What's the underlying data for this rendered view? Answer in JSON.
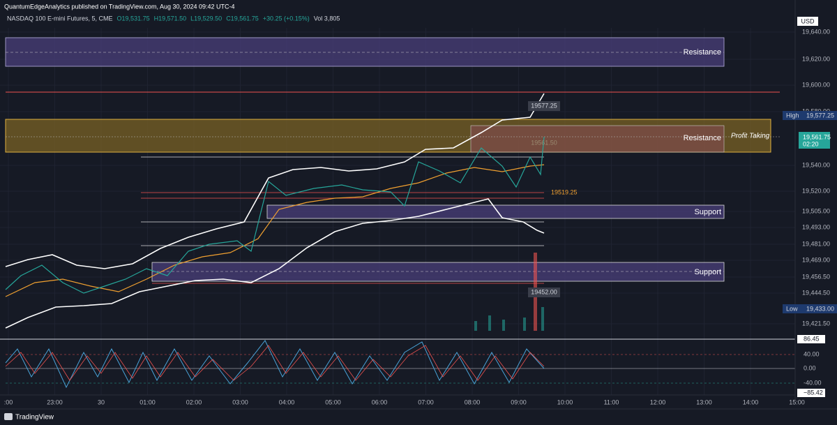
{
  "header": {
    "publisher": "QuantumEdgeAnalytics published on TradingView.com, Aug 30, 2024 09:42 UTC-4"
  },
  "legend": {
    "symbol": "NASDAQ 100 E-mini Futures, 5, CME",
    "open": "O19,531.75",
    "high": "H19,571.50",
    "low": "L19,529.50",
    "close": "C19,561.75",
    "change": "+30.25 (+0.15%)",
    "volume": "Vol 3,805"
  },
  "price_axis": {
    "currency": "USD",
    "labels": [
      "19,640.00",
      "19,620.00",
      "19,600.00",
      "19,580.00",
      "19,540.00",
      "19,520.00",
      "19,505.00",
      "19,493.00",
      "19,481.00",
      "19,469.00",
      "19,456.50",
      "19,444.50",
      "19,421.50"
    ]
  },
  "badges": {
    "high_tag": "High",
    "high_value": "19,577.25",
    "last_value": "19,561.75",
    "countdown": "02:20",
    "low_tag": "Low",
    "low_value": "19,433.00"
  },
  "zones": {
    "resistance_top": "Resistance",
    "resistance_mid": "Resistance",
    "profit_taking": "Profit Taking",
    "support_top": "Support",
    "support_bottom": "Support"
  },
  "annotations": {
    "high_point": "19577.25",
    "level_a": "19561.50",
    "level_b": "19519.25",
    "low_point": "19452.00"
  },
  "oscillator_axis": {
    "labels": [
      "86.45",
      "40.00",
      "0.00",
      "-40.00",
      "−85.42"
    ]
  },
  "time_axis": {
    "labels": [
      ":00",
      "23:00",
      "30",
      "01:00",
      "02:00",
      "03:00",
      "04:00",
      "05:00",
      "06:00",
      "07:00",
      "08:00",
      "09:00",
      "10:00",
      "11:00",
      "12:00",
      "13:00",
      "14:00",
      "15:00"
    ]
  },
  "footer": {
    "brand": "TradingView"
  }
}
